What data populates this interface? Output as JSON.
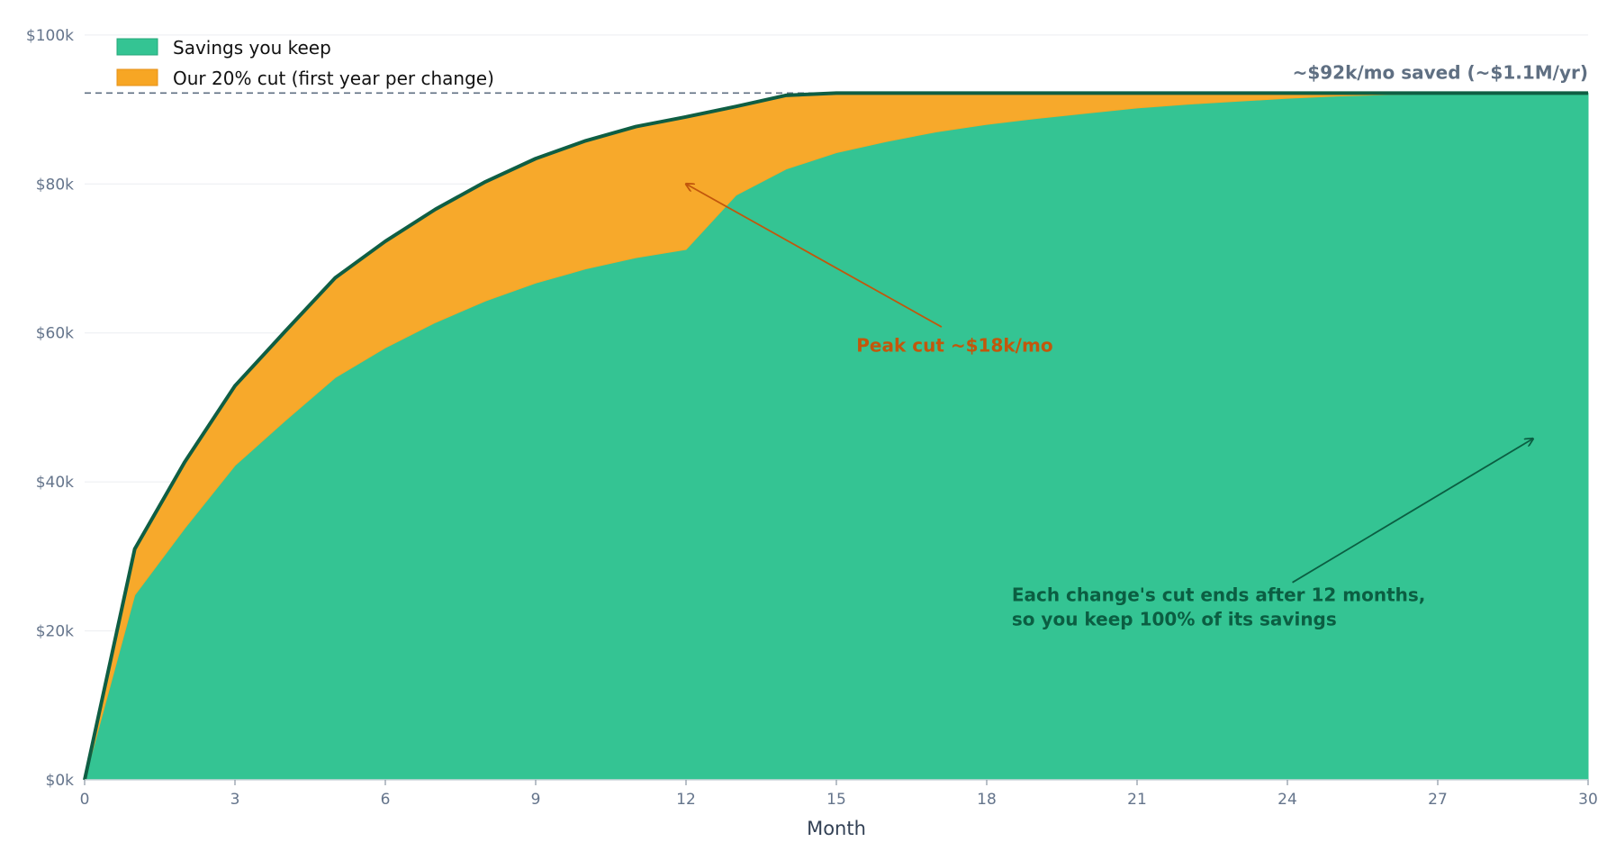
{
  "chart_data": {
    "type": "area",
    "title": "",
    "xlabel": "Month",
    "ylabel": "",
    "xlim": [
      0,
      30
    ],
    "ylim": [
      0,
      103000
    ],
    "x_ticks": [
      0,
      3,
      6,
      9,
      12,
      15,
      18,
      21,
      24,
      27,
      30
    ],
    "y_ticks": [
      0,
      20000,
      40000,
      60000,
      80000,
      100000
    ],
    "y_tick_labels": [
      "$0k",
      "$20k",
      "$40k",
      "$60k",
      "$80k",
      "$100k"
    ],
    "grid": "horizontal",
    "legend_position": "top-left",
    "x": [
      0,
      1,
      2,
      3,
      4,
      5,
      6,
      7,
      8,
      9,
      10,
      11,
      12,
      13,
      14,
      15,
      16,
      17,
      18,
      19,
      20,
      21,
      22,
      23,
      24,
      25,
      26,
      27,
      28,
      29,
      30
    ],
    "series": [
      {
        "name": "Savings you keep",
        "color": "#34c493",
        "values": [
          0,
          24800,
          33800,
          42200,
          48200,
          54000,
          58000,
          61400,
          64300,
          66700,
          68600,
          70100,
          71200,
          78500,
          82000,
          84200,
          85700,
          87000,
          88000,
          88800,
          89500,
          90200,
          90700,
          91100,
          91500,
          91800,
          92000,
          92100,
          92200,
          92200,
          92200
        ]
      },
      {
        "name": "Our 20% cut (first year per change)",
        "color": "#f7a624",
        "values": [
          0,
          6200,
          8900,
          10700,
          12000,
          13400,
          14300,
          15200,
          16000,
          16700,
          17200,
          17600,
          17800,
          11900,
          9900,
          8000,
          6500,
          5200,
          4200,
          3400,
          2700,
          2000,
          1500,
          1100,
          700,
          400,
          200,
          100,
          0,
          0,
          0
        ]
      }
    ],
    "total_line_color": "#0f5e43",
    "reference_line": {
      "value": 92200,
      "label": "~$92k/mo saved (~$1.1M/yr)",
      "color": "#5f6f82"
    },
    "annotations": [
      {
        "name": "peak-cut",
        "lines": [
          "Peak cut ~$18k/mo"
        ],
        "color": "#c2570c",
        "text_at": [
          15.4,
          57500
        ],
        "arrow_from": [
          17.1,
          60800
        ],
        "arrow_to": [
          12.0,
          80000
        ]
      },
      {
        "name": "cut-ends",
        "lines": [
          "Each change's cut ends after 12 months,",
          "so you keep 100% of its savings"
        ],
        "color": "#0b5e42",
        "text_at": [
          18.5,
          24000
        ],
        "arrow_from": [
          24.1,
          26500
        ],
        "arrow_to": [
          28.9,
          45800
        ]
      }
    ]
  }
}
